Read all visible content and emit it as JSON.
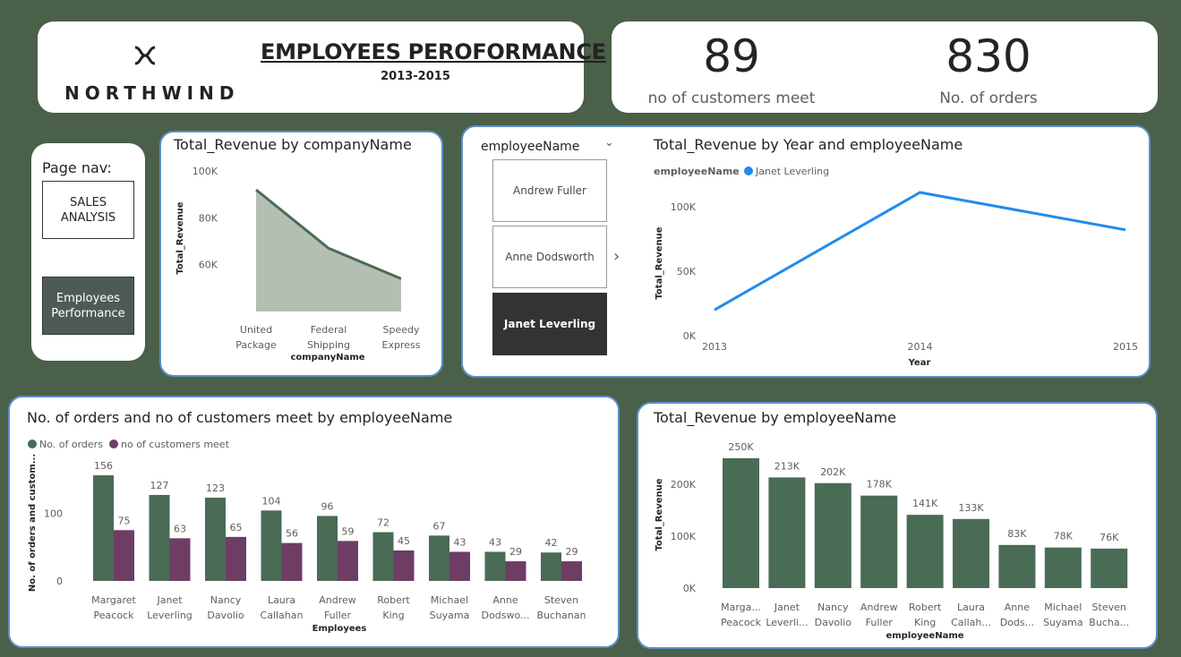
{
  "header": {
    "logo_text": "NORTHWIND",
    "title": "EMPLOYEES PEROFORMANCE",
    "subtitle": "2013-2015"
  },
  "kpis": [
    {
      "value": "89",
      "label": "no of customers meet"
    },
    {
      "value": "830",
      "label": "No. of orders"
    }
  ],
  "nav": {
    "label": "Page nav:",
    "buttons": [
      "SALES ANALYSIS",
      "Employees Performance"
    ],
    "active_index": 1
  },
  "slicer": {
    "title": "employeeName",
    "items": [
      "Andrew Fuller",
      "Anne Dodsworth",
      "Janet Leverling"
    ],
    "selected": "Janet Leverling"
  },
  "colors": {
    "primary": "#4a6b55",
    "secondary": "#6e3d64",
    "line": "#1f8ceb",
    "area_fill": "#b4bfb3"
  },
  "chart_data": [
    {
      "id": "area",
      "type": "area",
      "title": "Total_Revenue by companyName",
      "xlabel": "companyName",
      "ylabel": "Total_Revenue",
      "categories": [
        [
          "United",
          "Package"
        ],
        [
          "Federal",
          "Shipping"
        ],
        [
          "Speedy",
          "Express"
        ]
      ],
      "values": [
        92000,
        67000,
        54000
      ],
      "yticks": [
        60000,
        80000,
        100000
      ],
      "ytick_labels": [
        "60K",
        "80K",
        "100K"
      ],
      "ylim": [
        40000,
        105000
      ]
    },
    {
      "id": "line",
      "type": "line",
      "title": "Total_Revenue by Year and employeeName",
      "legend_title": "employeeName",
      "xlabel": "Year",
      "ylabel": "Total_Revenue",
      "x": [
        "2013",
        "2014",
        "2015"
      ],
      "series": [
        {
          "name": "Janet Leverling",
          "values": [
            20000,
            111000,
            82000
          ]
        }
      ],
      "yticks": [
        0,
        50000,
        100000
      ],
      "ytick_labels": [
        "0K",
        "50K",
        "100K"
      ],
      "ylim": [
        0,
        120000
      ]
    },
    {
      "id": "cluster",
      "type": "bar",
      "title": "No. of orders and no of customers meet by employeeName",
      "xlabel": "Employees",
      "ylabel": "No. of orders and custom...",
      "categories": [
        [
          "Margaret",
          "Peacock"
        ],
        [
          "Janet",
          "Leverling"
        ],
        [
          "Nancy",
          "Davolio"
        ],
        [
          "Laura",
          "Callahan"
        ],
        [
          "Andrew",
          "Fuller"
        ],
        [
          "Robert",
          "King"
        ],
        [
          "Michael",
          "Suyama"
        ],
        [
          "Anne",
          "Dodswo..."
        ],
        [
          "Steven",
          "Buchanan"
        ]
      ],
      "series": [
        {
          "name": "No. of orders",
          "values": [
            156,
            127,
            123,
            104,
            96,
            72,
            67,
            43,
            42
          ]
        },
        {
          "name": "no of customers meet",
          "values": [
            75,
            63,
            65,
            56,
            59,
            45,
            43,
            29,
            29
          ]
        }
      ],
      "yticks": [
        0,
        100
      ],
      "ytick_labels": [
        "0",
        "100"
      ],
      "ylim": [
        0,
        160
      ]
    },
    {
      "id": "bars",
      "type": "bar",
      "title": "Total_Revenue by employeeName",
      "xlabel": "employeeName",
      "ylabel": "Total_Revenue",
      "categories": [
        [
          "Marga...",
          "Peacock"
        ],
        [
          "Janet",
          "Leverli..."
        ],
        [
          "Nancy",
          "Davolio"
        ],
        [
          "Andrew",
          "Fuller"
        ],
        [
          "Robert",
          "King"
        ],
        [
          "Laura",
          "Callah..."
        ],
        [
          "Anne",
          "Dods..."
        ],
        [
          "Michael",
          "Suyama"
        ],
        [
          "Steven",
          "Bucha..."
        ]
      ],
      "values": [
        250000,
        213000,
        202000,
        178000,
        141000,
        133000,
        83000,
        78000,
        76000
      ],
      "value_labels": [
        "250K",
        "213K",
        "202K",
        "178K",
        "141K",
        "133K",
        "83K",
        "78K",
        "76K"
      ],
      "yticks": [
        0,
        100000,
        200000
      ],
      "ytick_labels": [
        "0K",
        "100K",
        "200K"
      ],
      "ylim": [
        0,
        255000
      ]
    }
  ]
}
